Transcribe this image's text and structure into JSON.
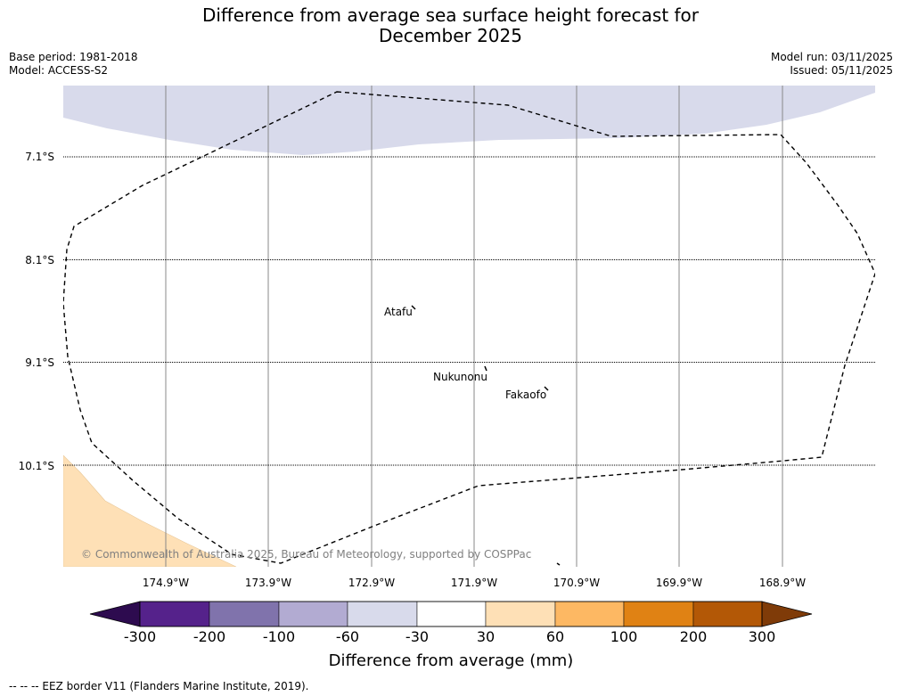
{
  "title_line1": "Difference from average sea surface height forecast for",
  "title_line2": "December 2025",
  "base_period": "Base period: 1981-2018",
  "model": "Model: ACCESS-S2",
  "model_run": "Model run: 03/11/2025",
  "issued": "Issued: 05/11/2025",
  "lat_labels": [
    "7.1°S",
    "8.1°S",
    "9.1°S",
    "10.1°S"
  ],
  "lon_labels": [
    "174.9°W",
    "173.9°W",
    "172.9°W",
    "171.9°W",
    "170.9°W",
    "169.9°W",
    "168.9°W"
  ],
  "places": [
    "Atafu",
    "Nukunonu",
    "Fakaofo"
  ],
  "copyright": "© Commonwealth of Australia 2025, Bureau of Meteorology, supported by COSPPac",
  "colorbar": {
    "title": "Difference from average (mm)",
    "ticks": [
      "-300",
      "-200",
      "-100",
      "-60",
      "-30",
      "30",
      "60",
      "100",
      "200",
      "300"
    ],
    "colors": [
      "#2d0b4f",
      "#55228b",
      "#8073ac",
      "#b2abd2",
      "#d8daeb",
      "#ffffff",
      "#fee0b6",
      "#fdb863",
      "#e08214",
      "#b35806",
      "#7f3b08"
    ]
  },
  "map_colors": {
    "north_fill": "#d8daeb",
    "southwest_fill": "#fee0b6"
  },
  "footnote": "-- -- -- EEZ border V11 (Flanders Marine Institute, 2019)."
}
